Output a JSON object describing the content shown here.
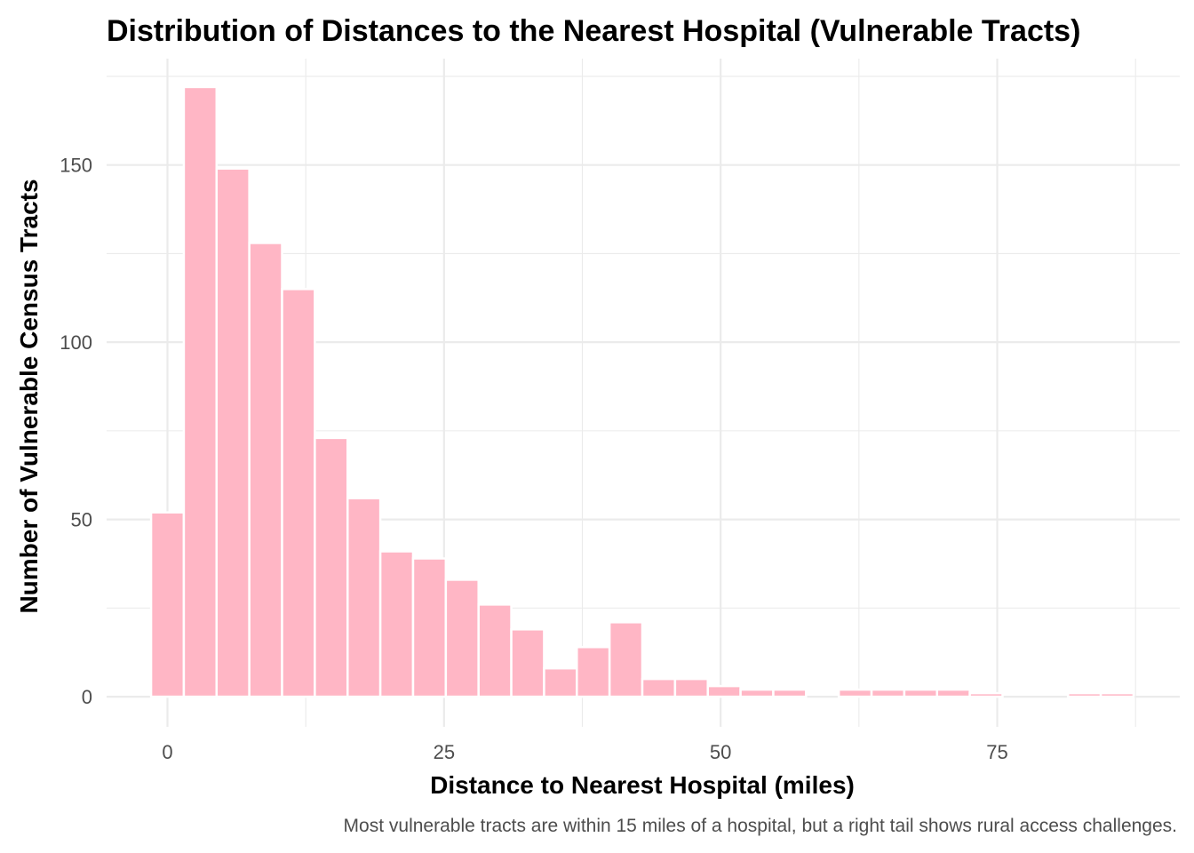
{
  "chart_data": {
    "type": "bar",
    "title": "Distribution of Distances to the Nearest Hospital (Vulnerable Tracts)",
    "xlabel": "Distance to Nearest Hospital (miles)",
    "ylabel": "Number of Vulnerable Census Tracts",
    "caption": "Most vulnerable tracts are within 15 miles of a hospital, but a right tail shows rural access challenges.",
    "bin_width": 2.96,
    "bin_centers": [
      0.0,
      2.96,
      5.92,
      8.88,
      11.84,
      14.8,
      17.76,
      20.72,
      23.68,
      26.64,
      29.6,
      32.56,
      35.52,
      38.48,
      41.44,
      44.4,
      47.36,
      50.32,
      53.28,
      56.24,
      59.2,
      62.16,
      65.12,
      68.08,
      71.04,
      74.0,
      76.96,
      79.92,
      82.88,
      85.84
    ],
    "values": [
      52,
      172,
      149,
      128,
      115,
      73,
      56,
      41,
      39,
      33,
      26,
      19,
      8,
      14,
      21,
      5,
      5,
      3,
      2,
      2,
      0,
      2,
      2,
      2,
      2,
      1,
      0,
      0,
      1,
      1
    ],
    "xlim": [
      -5.5,
      91.5
    ],
    "ylim": [
      -8.5,
      180
    ],
    "x_ticks": [
      0,
      25,
      50,
      75
    ],
    "x_tick_labels": [
      "0",
      "25",
      "50",
      "75"
    ],
    "y_ticks": [
      0,
      50,
      100,
      150
    ],
    "y_tick_labels": [
      "0",
      "50",
      "100",
      "150"
    ],
    "grid": true,
    "legend": "none",
    "colors": {
      "bar_fill": "#ffb6c5",
      "bar_stroke": "#ffffff",
      "grid": "#ebebeb",
      "background": "#ffffff"
    }
  }
}
